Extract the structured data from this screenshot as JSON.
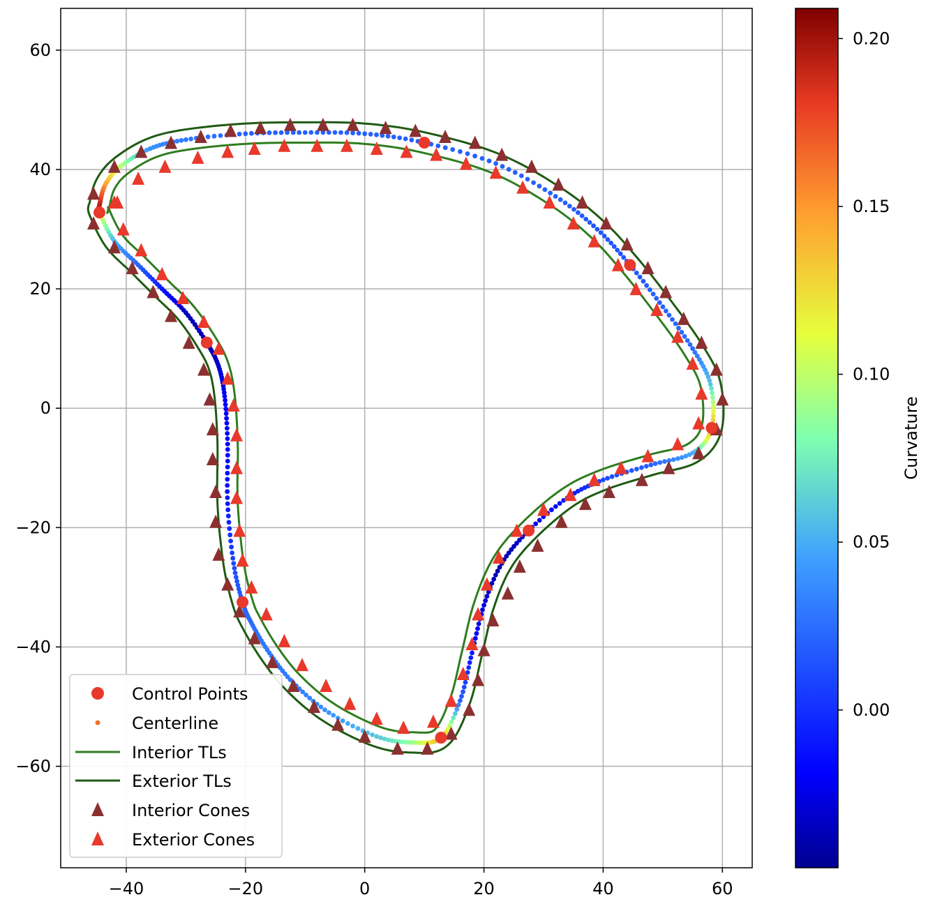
{
  "chart_data": {
    "type": "scatter",
    "title": "",
    "xlabel": "",
    "ylabel": "",
    "xlim": [
      -51,
      65
    ],
    "ylim": [
      -77,
      67
    ],
    "xticks": [
      -40,
      -20,
      0,
      20,
      40,
      60
    ],
    "yticks": [
      60,
      40,
      20,
      0,
      -20,
      -40,
      -60
    ],
    "xtick_labels": [
      "−40",
      "−20",
      "0",
      "20",
      "40",
      "60"
    ],
    "ytick_labels": [
      "60",
      "40",
      "20",
      "0",
      "−20",
      "−40",
      "−60"
    ],
    "grid": true,
    "legend_position": "lower-left",
    "colorbar": {
      "label": "Curvature",
      "range": [
        -0.047,
        0.209
      ],
      "ticks": [
        0.0,
        0.05,
        0.1,
        0.15,
        0.2
      ],
      "tick_labels": [
        "0.00",
        "0.05",
        "0.10",
        "0.15",
        "0.20"
      ],
      "colormap": "jet"
    },
    "legend": [
      {
        "label": "Control Points",
        "marker": "circle",
        "color": "#e8392b"
      },
      {
        "label": "Centerline",
        "marker": "dot",
        "color": "#e8732b"
      },
      {
        "label": "Interior TLs",
        "marker": "line",
        "color": "#2e7d1f"
      },
      {
        "label": "Exterior TLs",
        "marker": "line",
        "color": "#1e5a12"
      },
      {
        "label": "Interior Cones",
        "marker": "triangle",
        "color": "#8b3030"
      },
      {
        "label": "Exterior Cones",
        "marker": "triangle",
        "color": "#e8392b"
      }
    ],
    "control_points": [
      [
        10,
        44.5
      ],
      [
        44.5,
        24
      ],
      [
        58.2,
        -3.3
      ],
      [
        27.5,
        -20.5
      ],
      [
        12.8,
        -55.2
      ],
      [
        -20.5,
        -32.5
      ],
      [
        -26.5,
        11
      ],
      [
        -44.5,
        32.8
      ]
    ],
    "centerline_guide": [
      [
        -44.5,
        34
      ],
      [
        -43.5,
        37.5
      ],
      [
        -41,
        40.5
      ],
      [
        -36,
        43.5
      ],
      [
        -30,
        45
      ],
      [
        -20,
        46
      ],
      [
        -10,
        46.2
      ],
      [
        0,
        46
      ],
      [
        10,
        44.5
      ],
      [
        22,
        41
      ],
      [
        32,
        35.5
      ],
      [
        39,
        30
      ],
      [
        44.5,
        24
      ],
      [
        50,
        17
      ],
      [
        55,
        10
      ],
      [
        58,
        4
      ],
      [
        58.2,
        -3.3
      ],
      [
        55,
        -7.5
      ],
      [
        48,
        -9.5
      ],
      [
        40,
        -12
      ],
      [
        34,
        -15
      ],
      [
        27.5,
        -20.5
      ],
      [
        23,
        -26
      ],
      [
        20,
        -33
      ],
      [
        18,
        -41
      ],
      [
        16,
        -49
      ],
      [
        12.8,
        -55.2
      ],
      [
        8,
        -56
      ],
      [
        2,
        -55
      ],
      [
        -6,
        -51
      ],
      [
        -12,
        -46
      ],
      [
        -16,
        -41
      ],
      [
        -19,
        -36
      ],
      [
        -20.5,
        -32.5
      ],
      [
        -22,
        -26
      ],
      [
        -23,
        -16
      ],
      [
        -23,
        -6
      ],
      [
        -23.5,
        2
      ],
      [
        -24.5,
        7
      ],
      [
        -26.5,
        11
      ],
      [
        -30,
        16
      ],
      [
        -34,
        20
      ],
      [
        -38,
        24
      ],
      [
        -42,
        28
      ],
      [
        -44.5,
        32.8
      ]
    ],
    "centerline_curvature_guide": [
      0.2,
      0.15,
      0.1,
      0.04,
      0.03,
      0.02,
      0.02,
      0.02,
      0.02,
      0.02,
      0.02,
      0.015,
      0.015,
      0.02,
      0.025,
      0.06,
      0.15,
      0.05,
      0.02,
      0.01,
      -0.01,
      -0.03,
      -0.04,
      -0.03,
      -0.01,
      0.02,
      0.15,
      0.09,
      0.06,
      0.04,
      0.03,
      0.03,
      0.025,
      0.02,
      0.01,
      -0.01,
      -0.02,
      -0.02,
      -0.03,
      -0.04,
      -0.035,
      -0.01,
      0.02,
      0.05,
      0.12
    ],
    "interior_cones": [
      [
        -45.5,
        36
      ],
      [
        -42,
        40.5
      ],
      [
        -37.5,
        43
      ],
      [
        -32.5,
        44.5
      ],
      [
        -27.5,
        45.5
      ],
      [
        -22.5,
        46.5
      ],
      [
        -17.5,
        47
      ],
      [
        -12.5,
        47.5
      ],
      [
        -7,
        47.5
      ],
      [
        -2,
        47.5
      ],
      [
        3.5,
        47
      ],
      [
        8.5,
        46.5
      ],
      [
        13.5,
        45.5
      ],
      [
        18.5,
        44.5
      ],
      [
        23,
        42.5
      ],
      [
        28,
        40.5
      ],
      [
        32.5,
        37.5
      ],
      [
        36.5,
        34.5
      ],
      [
        40.5,
        31
      ],
      [
        44,
        27.5
      ],
      [
        47.5,
        23.5
      ],
      [
        50.5,
        19.5
      ],
      [
        53.5,
        15
      ],
      [
        56.5,
        11
      ],
      [
        59,
        6.5
      ],
      [
        60,
        1.5
      ],
      [
        59,
        -3.5
      ],
      [
        56,
        -7.5
      ],
      [
        51,
        -10
      ],
      [
        46.5,
        -12
      ],
      [
        41,
        -14
      ],
      [
        37,
        -16
      ],
      [
        33,
        -19
      ],
      [
        29,
        -23
      ],
      [
        26,
        -26.5
      ],
      [
        24,
        -31
      ],
      [
        21.5,
        -35.5
      ],
      [
        20,
        -40.5
      ],
      [
        19,
        -45.5
      ],
      [
        17.5,
        -50.5
      ],
      [
        14.5,
        -54.5
      ],
      [
        10.5,
        -57
      ],
      [
        5.5,
        -57
      ],
      [
        0,
        -55
      ],
      [
        -4.5,
        -53
      ],
      [
        -8.5,
        -50
      ],
      [
        -12,
        -46.5
      ],
      [
        -15.5,
        -42.5
      ],
      [
        -18.5,
        -38.5
      ],
      [
        -21,
        -34
      ],
      [
        -23,
        -29.5
      ],
      [
        -24.5,
        -24.5
      ],
      [
        -25,
        -19
      ],
      [
        -25,
        -14
      ],
      [
        -25.5,
        -8.5
      ],
      [
        -25.5,
        -3.5
      ],
      [
        -26,
        1.5
      ],
      [
        -27,
        6.5
      ],
      [
        -29.5,
        11
      ],
      [
        -32.5,
        15.5
      ],
      [
        -35.5,
        19.5
      ],
      [
        -39,
        23.5
      ],
      [
        -42,
        27
      ],
      [
        -45.5,
        31
      ]
    ],
    "exterior_cones": [
      [
        -42,
        34.5
      ],
      [
        -40.5,
        30
      ],
      [
        -37.5,
        26.5
      ],
      [
        -34,
        22.5
      ],
      [
        -30.5,
        18.5
      ],
      [
        -27,
        14.5
      ],
      [
        -24.5,
        10
      ],
      [
        -23,
        5
      ],
      [
        -22,
        0.5
      ],
      [
        -21.5,
        -4.5
      ],
      [
        -21.5,
        -10
      ],
      [
        -21.5,
        -15
      ],
      [
        -21,
        -20.5
      ],
      [
        -20.5,
        -25.5
      ],
      [
        -19,
        -30
      ],
      [
        -16.5,
        -34.5
      ],
      [
        -13.5,
        -39
      ],
      [
        -10.5,
        -43
      ],
      [
        -6.5,
        -46.5
      ],
      [
        -2.5,
        -49.5
      ],
      [
        2,
        -52
      ],
      [
        6.5,
        -53.5
      ],
      [
        11.5,
        -52.5
      ],
      [
        14.5,
        -49
      ],
      [
        16.5,
        -44.5
      ],
      [
        18,
        -39.5
      ],
      [
        19,
        -34.5
      ],
      [
        20.5,
        -29.5
      ],
      [
        22.5,
        -25
      ],
      [
        25.5,
        -20.5
      ],
      [
        30,
        -17
      ],
      [
        34.5,
        -14.5
      ],
      [
        38.5,
        -12
      ],
      [
        43,
        -10
      ],
      [
        47.5,
        -8
      ],
      [
        52.5,
        -6
      ],
      [
        56,
        -2.5
      ],
      [
        56.5,
        2.5
      ],
      [
        55,
        7.5
      ],
      [
        52.5,
        12
      ],
      [
        49,
        16.5
      ],
      [
        45.5,
        20
      ],
      [
        42.5,
        24
      ],
      [
        38.5,
        28
      ],
      [
        35,
        31
      ],
      [
        31,
        34.5
      ],
      [
        26.5,
        37
      ],
      [
        22,
        39.5
      ],
      [
        17,
        41
      ],
      [
        12,
        42.5
      ],
      [
        7,
        43
      ],
      [
        2,
        43.5
      ],
      [
        -3,
        44
      ],
      [
        -8,
        44
      ],
      [
        -13.5,
        44
      ],
      [
        -18.5,
        43.5
      ],
      [
        -23,
        43
      ],
      [
        -28,
        42
      ],
      [
        -33.5,
        40.5
      ],
      [
        -38,
        38.5
      ],
      [
        -41.5,
        34.5
      ]
    ]
  }
}
